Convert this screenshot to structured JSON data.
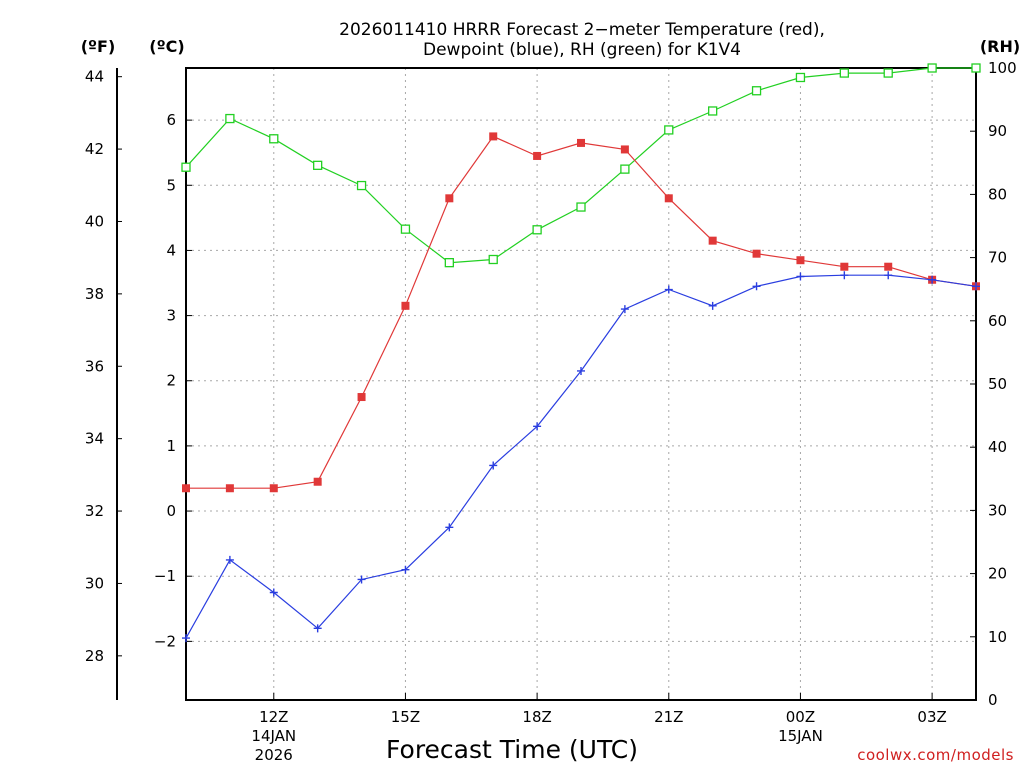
{
  "chart_data": {
    "type": "line",
    "title": "2026011410 HRRR Forecast 2−meter Temperature (red),",
    "title_line2": "Dewpoint (blue), RH (green) for K1V4",
    "xlabel": "Forecast Time (UTC)",
    "credit": "coolwx.com/models",
    "units": {
      "fahrenheit": "(ºF)",
      "celsius": "(ºC)",
      "rh": "(RH)"
    },
    "x": [
      10,
      11,
      12,
      13,
      14,
      15,
      16,
      17,
      18,
      19,
      20,
      21,
      22,
      23,
      24,
      25,
      26,
      27,
      28
    ],
    "xlim": [
      10,
      28
    ],
    "x_ticks": [
      {
        "x": 12,
        "label": "12Z",
        "date": "14JAN",
        "year": "2026"
      },
      {
        "x": 15,
        "label": "15Z",
        "date": "",
        "year": ""
      },
      {
        "x": 18,
        "label": "18Z",
        "date": "",
        "year": ""
      },
      {
        "x": 21,
        "label": "21Z",
        "date": "",
        "year": ""
      },
      {
        "x": 24,
        "label": "00Z",
        "date": "15JAN",
        "year": ""
      },
      {
        "x": 27,
        "label": "03Z",
        "date": "",
        "year": ""
      }
    ],
    "celsius_ylim": [
      -2.9,
      6.8
    ],
    "celsius_ticks": [
      "−2",
      "−1",
      "0",
      "1",
      "2",
      "3",
      "4",
      "5",
      "6"
    ],
    "fahrenheit_ticks": [
      "28",
      "30",
      "32",
      "34",
      "36",
      "38",
      "40",
      "42",
      "44"
    ],
    "rh_ylim": [
      0,
      100
    ],
    "rh_ticks": [
      "0",
      "10",
      "20",
      "30",
      "40",
      "50",
      "60",
      "70",
      "80",
      "90",
      "100"
    ],
    "series": [
      {
        "name": "Temperature",
        "color": "#e03838",
        "marker": "filled-square",
        "axis": "celsius",
        "values": [
          0.35,
          0.35,
          0.35,
          0.45,
          1.75,
          3.15,
          4.8,
          5.75,
          5.45,
          5.65,
          5.55,
          4.8,
          4.15,
          3.95,
          3.85,
          3.75,
          3.75,
          3.55,
          3.45
        ]
      },
      {
        "name": "Dewpoint",
        "color": "#2a3ee0",
        "marker": "plus",
        "axis": "celsius",
        "values": [
          -1.95,
          -0.75,
          -1.25,
          -1.8,
          -1.05,
          -0.9,
          -0.25,
          0.7,
          1.3,
          2.15,
          3.1,
          3.4,
          3.15,
          3.45,
          3.6,
          3.62,
          3.62,
          3.55,
          3.45
        ]
      },
      {
        "name": "RH",
        "color": "#22d022",
        "marker": "open-square",
        "axis": "rh",
        "values": [
          84.3,
          92.0,
          88.8,
          84.6,
          81.4,
          74.5,
          69.2,
          69.7,
          74.4,
          78.0,
          84.0,
          90.2,
          93.2,
          96.4,
          98.5,
          99.2,
          99.2,
          100,
          100
        ]
      }
    ]
  }
}
